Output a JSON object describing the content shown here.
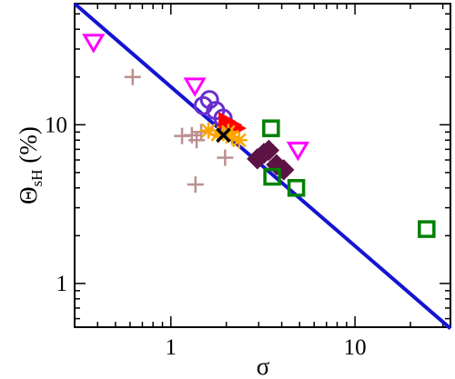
{
  "chart_data": {
    "type": "scatter",
    "title": "",
    "xlabel": "σ",
    "ylabel": {
      "symbol": "Θ",
      "subscript": "sH",
      "unit": " (%)"
    },
    "x_scale": "log",
    "y_scale": "log",
    "xlim": [
      0.3,
      33
    ],
    "ylim": [
      0.53,
      58
    ],
    "x_tick_labels": [
      {
        "value": 1,
        "label": "1"
      },
      {
        "value": 10,
        "label": "10"
      }
    ],
    "y_tick_labels": [
      {
        "value": 1,
        "label": "1"
      },
      {
        "value": 10,
        "label": "10"
      }
    ],
    "grid": false,
    "legend": "none",
    "fit_line": {
      "points": [
        [
          0.3,
          58
        ],
        [
          33,
          0.52
        ]
      ],
      "color": "#1414d2"
    },
    "series": [
      {
        "marker": "triangle-down",
        "color": "#ff00ff",
        "points": [
          [
            0.38,
            33
          ],
          [
            1.35,
            17.5
          ],
          [
            4.9,
            6.9
          ]
        ]
      },
      {
        "marker": "plus",
        "color": "#bc8f8f",
        "points": [
          [
            0.62,
            20
          ],
          [
            1.15,
            8.5
          ],
          [
            1.3,
            8.6
          ],
          [
            1.38,
            8.0
          ],
          [
            1.46,
            9.0
          ],
          [
            1.97,
            6.2
          ],
          [
            1.36,
            4.2
          ]
        ]
      },
      {
        "marker": "circle",
        "color": "#6a2ecc",
        "points": [
          [
            1.5,
            13.2
          ],
          [
            1.62,
            14.4
          ],
          [
            1.75,
            12.3
          ],
          [
            1.92,
            11.0
          ]
        ]
      },
      {
        "marker": "triangle-right",
        "color": "#ff0000",
        "points": [
          [
            2.0,
            10.6
          ],
          [
            2.18,
            10.0
          ],
          [
            2.3,
            9.5
          ]
        ]
      },
      {
        "marker": "star",
        "color": "#ffa500",
        "points": [
          [
            1.6,
            9.2
          ],
          [
            1.8,
            8.7
          ],
          [
            2.15,
            8.4
          ],
          [
            2.35,
            8.0
          ],
          [
            2.05,
            9.0
          ]
        ]
      },
      {
        "marker": "x",
        "color": "#000000",
        "points": [
          [
            1.93,
            8.6
          ]
        ]
      },
      {
        "marker": "diamond",
        "color": "#5d1444",
        "points": [
          [
            2.95,
            6.1
          ],
          [
            3.2,
            6.6
          ],
          [
            3.4,
            6.9
          ],
          [
            3.75,
            5.6
          ],
          [
            4.1,
            5.2
          ]
        ]
      },
      {
        "marker": "square",
        "color": "#008000",
        "points": [
          [
            3.5,
            9.5
          ],
          [
            3.55,
            4.7
          ],
          [
            4.8,
            4.0
          ],
          [
            24.5,
            2.2
          ]
        ]
      }
    ]
  }
}
